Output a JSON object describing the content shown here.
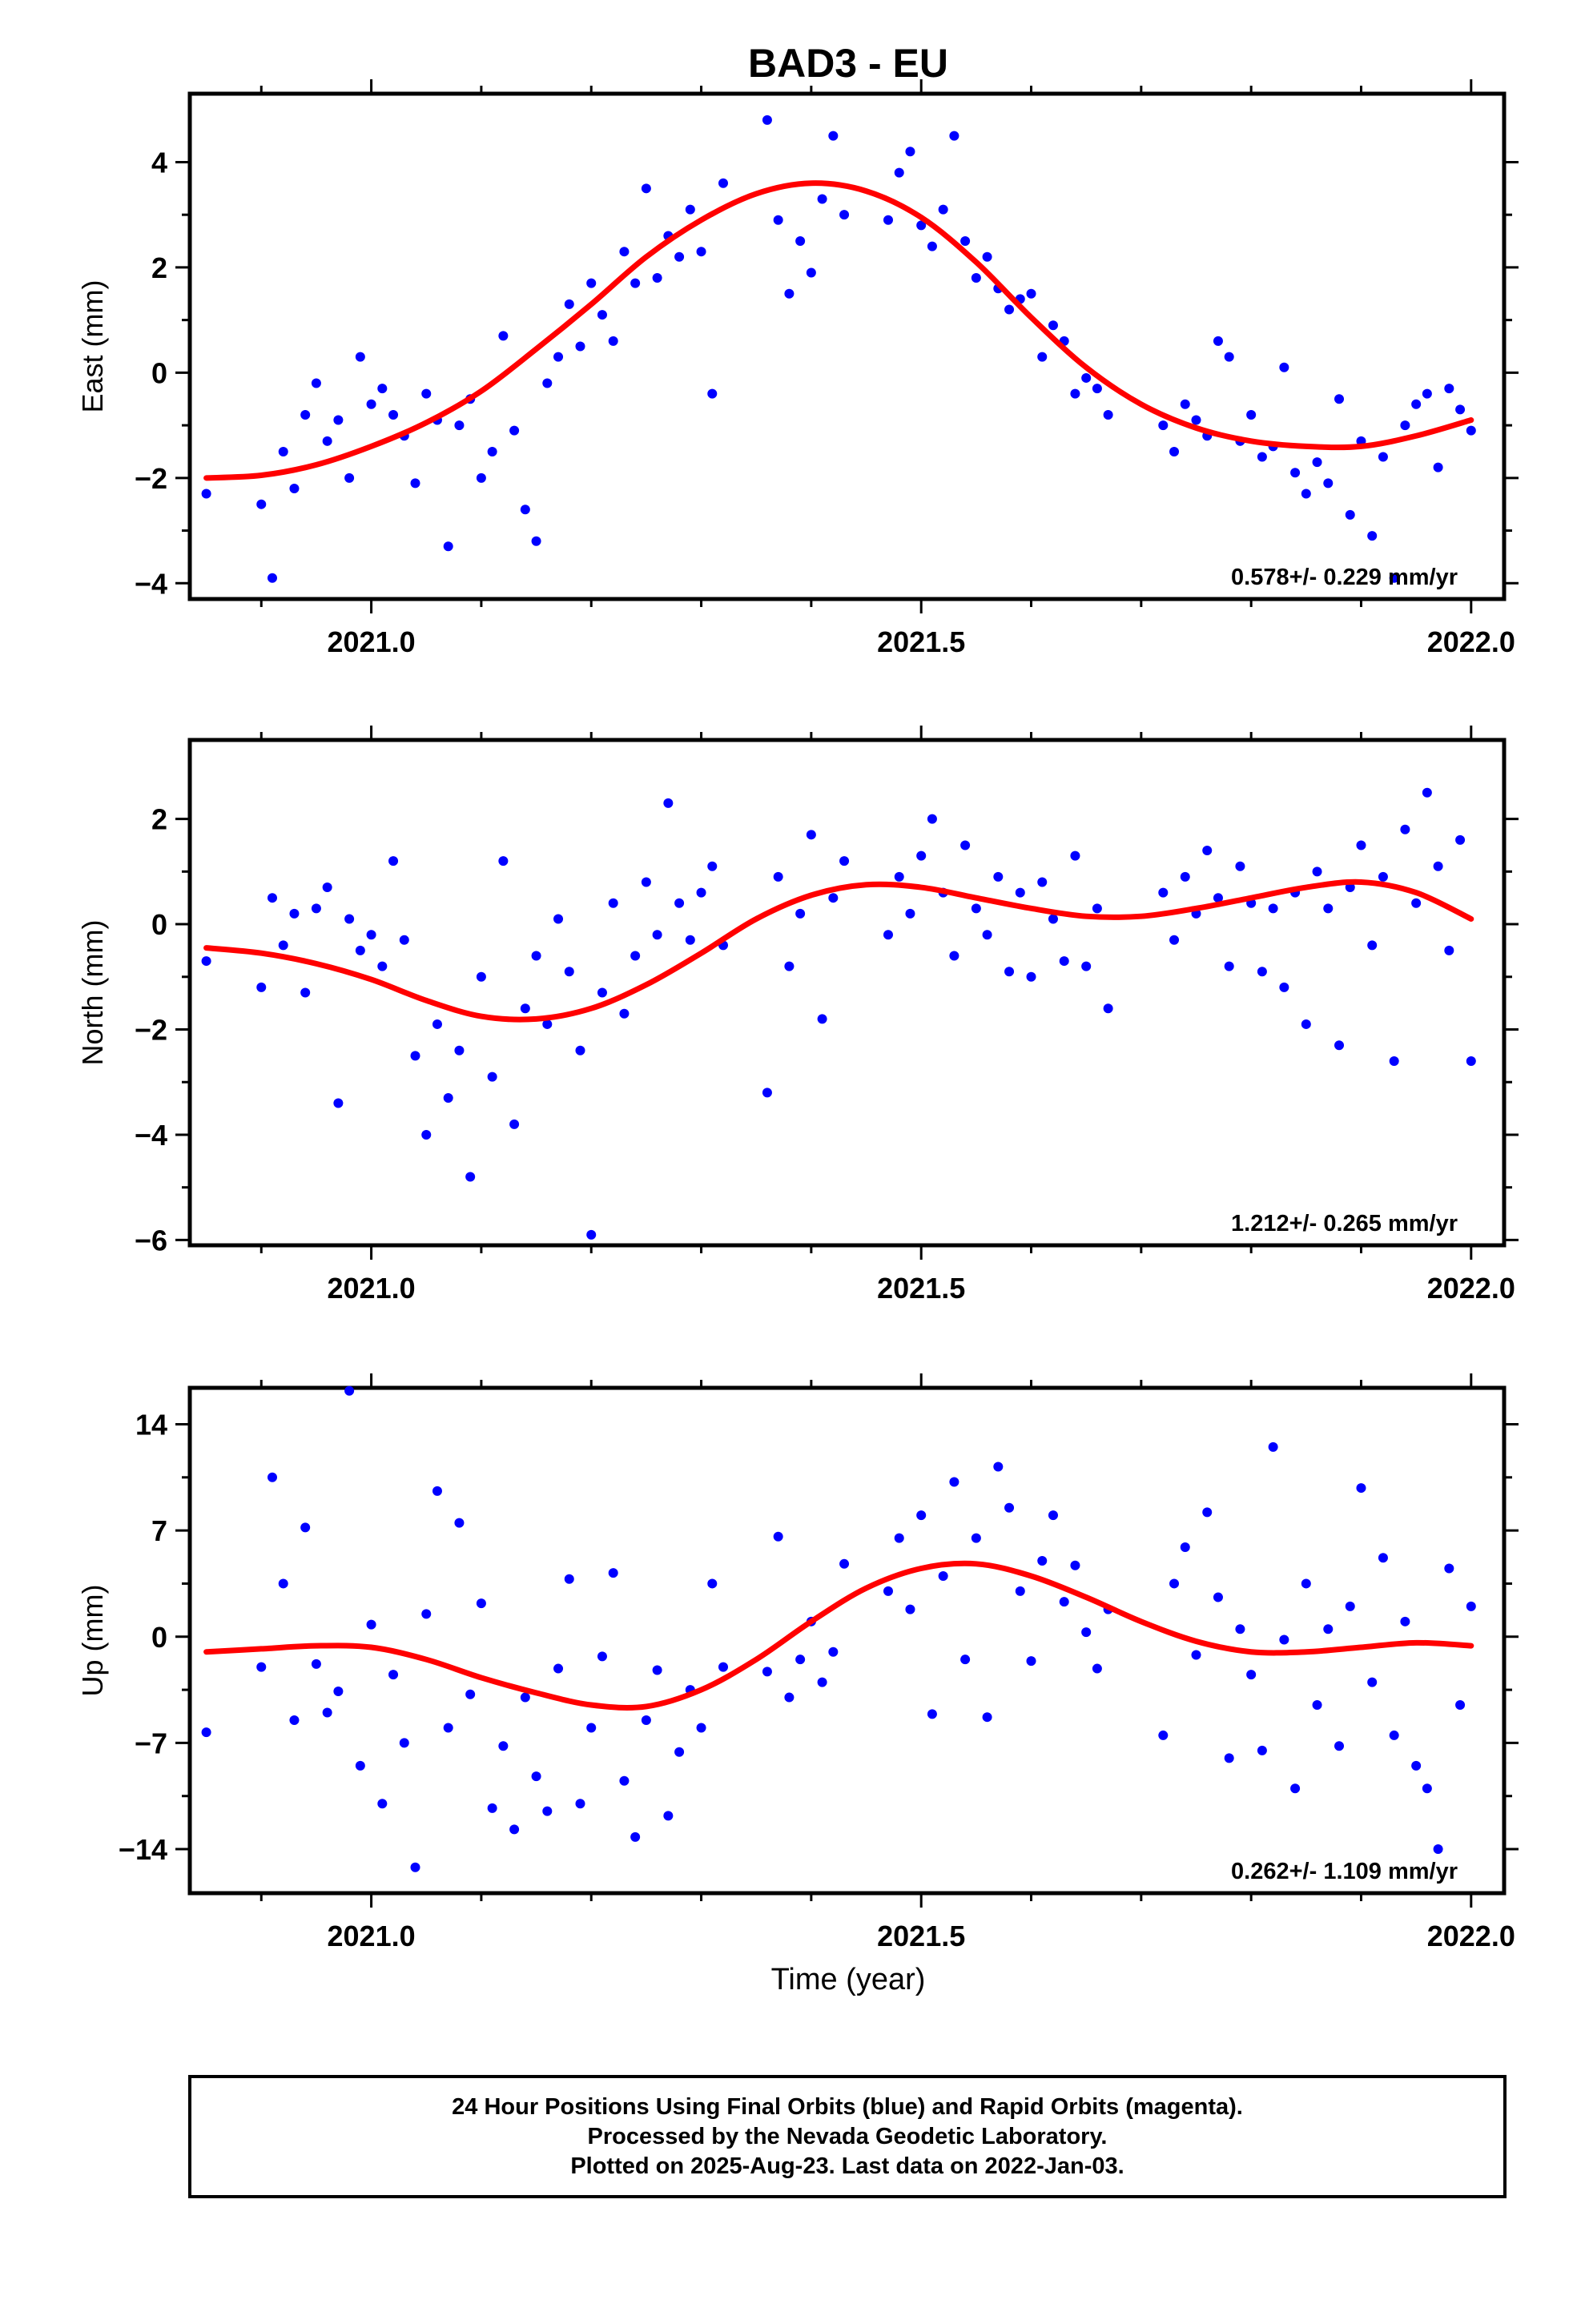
{
  "figure": {
    "title": "BAD3 - EU",
    "xlabel": "Time (year)",
    "footer": [
      "24 Hour Positions Using Final Orbits (blue) and Rapid Orbits (magenta).",
      "Processed by the Nevada Geodetic Laboratory.",
      "Plotted on 2025-Aug-23. Last data on 2022-Jan-03."
    ]
  },
  "colors": {
    "points": "#0000ff",
    "fit": "#ff0000",
    "axes": "#000000"
  },
  "chart_data": [
    {
      "type": "scatter",
      "ylabel": "East (mm)",
      "rate_label": "0.578+/- 0.229 mm/yr",
      "xlim": [
        2020.835,
        2022.03
      ],
      "ylim": [
        -4.3,
        5.3
      ],
      "xticks": [
        2021.0,
        2021.5,
        2022.0
      ],
      "xtick_labels": [
        "2021.0",
        "2021.5",
        "2022.0"
      ],
      "yticks": [
        -4,
        -2,
        0,
        2,
        4
      ],
      "ytick_labels": [
        "−4",
        "−2",
        "0",
        "2",
        "4"
      ],
      "series": [
        {
          "x": [
            2020.85,
            2020.9,
            2020.91,
            2020.92,
            2020.93,
            2020.94,
            2020.95,
            2020.96,
            2020.97,
            2020.98,
            2020.99,
            2021.0,
            2021.01,
            2021.02,
            2021.03,
            2021.04,
            2021.05,
            2021.06,
            2021.07,
            2021.08,
            2021.09,
            2021.1,
            2021.11,
            2021.12,
            2021.13,
            2021.14,
            2021.15,
            2021.16,
            2021.17,
            2021.18,
            2021.19,
            2021.2,
            2021.21,
            2021.22,
            2021.23,
            2021.24,
            2021.25,
            2021.26,
            2021.27,
            2021.28,
            2021.29,
            2021.3,
            2021.31,
            2021.32,
            2021.36,
            2021.37,
            2021.38,
            2021.39,
            2021.4,
            2021.41,
            2021.42,
            2021.43,
            2021.47,
            2021.48,
            2021.49,
            2021.5,
            2021.51,
            2021.52,
            2021.53,
            2021.54,
            2021.55,
            2021.56,
            2021.57,
            2021.58,
            2021.59,
            2021.6,
            2021.61,
            2021.62,
            2021.63,
            2021.64,
            2021.65,
            2021.66,
            2021.67,
            2021.72,
            2021.73,
            2021.74,
            2021.75,
            2021.76,
            2021.77,
            2021.78,
            2021.79,
            2021.8,
            2021.81,
            2021.82,
            2021.83,
            2021.84,
            2021.85,
            2021.86,
            2021.87,
            2021.88,
            2021.89,
            2021.9,
            2021.91,
            2021.92,
            2021.93,
            2021.94,
            2021.95,
            2021.96,
            2021.97,
            2021.98,
            2021.99,
            2022.0
          ],
          "y": [
            -2.3,
            -2.5,
            -3.9,
            -1.5,
            -2.2,
            -0.8,
            -0.2,
            -1.3,
            -0.9,
            -2.0,
            0.3,
            -0.6,
            -0.3,
            -0.8,
            -1.2,
            -2.1,
            -0.4,
            -0.9,
            -3.3,
            -1.0,
            -0.5,
            -2.0,
            -1.5,
            0.7,
            -1.1,
            -2.6,
            -3.2,
            -0.2,
            0.3,
            1.3,
            0.5,
            1.7,
            1.1,
            0.6,
            2.3,
            1.7,
            3.5,
            1.8,
            2.6,
            2.2,
            3.1,
            2.3,
            -0.4,
            3.6,
            4.8,
            2.9,
            1.5,
            2.5,
            1.9,
            3.3,
            4.5,
            3.0,
            2.9,
            3.8,
            4.2,
            2.8,
            2.4,
            3.1,
            4.5,
            2.5,
            1.8,
            2.2,
            1.6,
            1.2,
            1.4,
            1.5,
            0.3,
            0.9,
            0.6,
            -0.4,
            -0.1,
            -0.3,
            -0.8,
            -1.0,
            -1.5,
            -0.6,
            -0.9,
            -1.2,
            0.6,
            0.3,
            -1.3,
            -0.8,
            -1.6,
            -1.4,
            0.1,
            -1.9,
            -2.3,
            -1.7,
            -2.1,
            -0.5,
            -2.7,
            -1.3,
            -3.1,
            -1.6,
            -3.9,
            -1.0,
            -0.6,
            -0.4,
            -1.8,
            -0.3,
            -0.7,
            -1.1
          ]
        }
      ],
      "fit": {
        "x": [
          2020.85,
          2020.9,
          2020.95,
          2021.0,
          2021.05,
          2021.1,
          2021.15,
          2021.2,
          2021.25,
          2021.3,
          2021.35,
          2021.4,
          2021.45,
          2021.5,
          2021.55,
          2021.6,
          2021.65,
          2021.7,
          2021.75,
          2021.8,
          2021.85,
          2021.9,
          2021.95,
          2022.0
        ],
        "y": [
          -2.0,
          -1.95,
          -1.75,
          -1.4,
          -0.95,
          -0.35,
          0.45,
          1.3,
          2.2,
          2.9,
          3.4,
          3.6,
          3.45,
          2.95,
          2.1,
          1.05,
          0.1,
          -0.6,
          -1.05,
          -1.3,
          -1.4,
          -1.4,
          -1.2,
          -0.9
        ]
      }
    },
    {
      "type": "scatter",
      "ylabel": "North (mm)",
      "rate_label": "1.212+/- 0.265 mm/yr",
      "xlim": [
        2020.835,
        2022.03
      ],
      "ylim": [
        -6.1,
        3.5
      ],
      "xticks": [
        2021.0,
        2021.5,
        2022.0
      ],
      "xtick_labels": [
        "2021.0",
        "2021.5",
        "2022.0"
      ],
      "yticks": [
        -6,
        -4,
        -2,
        0,
        2
      ],
      "ytick_labels": [
        "−6",
        "−4",
        "−2",
        "0",
        "2"
      ],
      "series": [
        {
          "x": [
            2020.85,
            2020.9,
            2020.91,
            2020.92,
            2020.93,
            2020.94,
            2020.95,
            2020.96,
            2020.97,
            2020.98,
            2020.99,
            2021.0,
            2021.01,
            2021.02,
            2021.03,
            2021.04,
            2021.05,
            2021.06,
            2021.07,
            2021.08,
            2021.09,
            2021.1,
            2021.11,
            2021.12,
            2021.13,
            2021.14,
            2021.15,
            2021.16,
            2021.17,
            2021.18,
            2021.19,
            2021.2,
            2021.21,
            2021.22,
            2021.23,
            2021.24,
            2021.25,
            2021.26,
            2021.27,
            2021.28,
            2021.29,
            2021.3,
            2021.31,
            2021.32,
            2021.36,
            2021.37,
            2021.38,
            2021.39,
            2021.4,
            2021.41,
            2021.42,
            2021.43,
            2021.47,
            2021.48,
            2021.49,
            2021.5,
            2021.51,
            2021.52,
            2021.53,
            2021.54,
            2021.55,
            2021.56,
            2021.57,
            2021.58,
            2021.59,
            2021.6,
            2021.61,
            2021.62,
            2021.63,
            2021.64,
            2021.65,
            2021.66,
            2021.67,
            2021.72,
            2021.73,
            2021.74,
            2021.75,
            2021.76,
            2021.77,
            2021.78,
            2021.79,
            2021.8,
            2021.81,
            2021.82,
            2021.83,
            2021.84,
            2021.85,
            2021.86,
            2021.87,
            2021.88,
            2021.89,
            2021.9,
            2021.91,
            2021.92,
            2021.93,
            2021.94,
            2021.95,
            2021.96,
            2021.97,
            2021.98,
            2021.99,
            2022.0
          ],
          "y": [
            -0.7,
            -1.2,
            0.5,
            -0.4,
            0.2,
            -1.3,
            0.3,
            0.7,
            -3.4,
            0.1,
            -0.5,
            -0.2,
            -0.8,
            1.2,
            -0.3,
            -2.5,
            -4.0,
            -1.9,
            -3.3,
            -2.4,
            -4.8,
            -1.0,
            -2.9,
            1.2,
            -3.8,
            -1.6,
            -0.6,
            -1.9,
            0.1,
            -0.9,
            -2.4,
            -5.9,
            -1.3,
            0.4,
            -1.7,
            -0.6,
            0.8,
            -0.2,
            2.3,
            0.4,
            -0.3,
            0.6,
            1.1,
            -0.4,
            -3.2,
            0.9,
            -0.8,
            0.2,
            1.7,
            -1.8,
            0.5,
            1.2,
            -0.2,
            0.9,
            0.2,
            1.3,
            2.0,
            0.6,
            -0.6,
            1.5,
            0.3,
            -0.2,
            0.9,
            -0.9,
            0.6,
            -1.0,
            0.8,
            0.1,
            -0.7,
            1.3,
            -0.8,
            0.3,
            -1.6,
            0.6,
            -0.3,
            0.9,
            0.2,
            1.4,
            0.5,
            -0.8,
            1.1,
            0.4,
            -0.9,
            0.3,
            -1.2,
            0.6,
            -1.9,
            1.0,
            0.3,
            -2.3,
            0.7,
            1.5,
            -0.4,
            0.9,
            -2.6,
            1.8,
            0.4,
            2.5,
            1.1,
            -0.5,
            1.6,
            -2.6
          ]
        }
      ],
      "fit": {
        "x": [
          2020.85,
          2020.9,
          2020.95,
          2021.0,
          2021.05,
          2021.1,
          2021.15,
          2021.2,
          2021.25,
          2021.3,
          2021.35,
          2021.4,
          2021.45,
          2021.5,
          2021.55,
          2021.6,
          2021.65,
          2021.7,
          2021.75,
          2021.8,
          2021.85,
          2021.9,
          2021.95,
          2022.0
        ],
        "y": [
          -0.45,
          -0.55,
          -0.75,
          -1.05,
          -1.45,
          -1.75,
          -1.8,
          -1.6,
          -1.15,
          -0.55,
          0.1,
          0.55,
          0.75,
          0.7,
          0.5,
          0.3,
          0.15,
          0.15,
          0.3,
          0.5,
          0.7,
          0.8,
          0.6,
          0.1
        ]
      }
    },
    {
      "type": "scatter",
      "ylabel": "Up (mm)",
      "rate_label": "0.262+/- 1.109 mm/yr",
      "xlim": [
        2020.835,
        2022.03
      ],
      "ylim": [
        -16.9,
        16.4
      ],
      "xticks": [
        2021.0,
        2021.5,
        2022.0
      ],
      "xtick_labels": [
        "2021.0",
        "2021.5",
        "2022.0"
      ],
      "yticks": [
        -14,
        -7,
        0,
        7,
        14
      ],
      "ytick_labels": [
        "−14",
        "−7",
        "0",
        "7",
        "14"
      ],
      "series": [
        {
          "x": [
            2020.85,
            2020.9,
            2020.91,
            2020.92,
            2020.93,
            2020.94,
            2020.95,
            2020.96,
            2020.97,
            2020.98,
            2020.99,
            2021.0,
            2021.01,
            2021.02,
            2021.03,
            2021.04,
            2021.05,
            2021.06,
            2021.07,
            2021.08,
            2021.09,
            2021.1,
            2021.11,
            2021.12,
            2021.13,
            2021.14,
            2021.15,
            2021.16,
            2021.17,
            2021.18,
            2021.19,
            2021.2,
            2021.21,
            2021.22,
            2021.23,
            2021.24,
            2021.25,
            2021.26,
            2021.27,
            2021.28,
            2021.29,
            2021.3,
            2021.31,
            2021.32,
            2021.36,
            2021.37,
            2021.38,
            2021.39,
            2021.4,
            2021.41,
            2021.42,
            2021.43,
            2021.47,
            2021.48,
            2021.49,
            2021.5,
            2021.51,
            2021.52,
            2021.53,
            2021.54,
            2021.55,
            2021.56,
            2021.57,
            2021.58,
            2021.59,
            2021.6,
            2021.61,
            2021.62,
            2021.63,
            2021.64,
            2021.65,
            2021.66,
            2021.67,
            2021.72,
            2021.73,
            2021.74,
            2021.75,
            2021.76,
            2021.77,
            2021.78,
            2021.79,
            2021.8,
            2021.81,
            2021.82,
            2021.83,
            2021.84,
            2021.85,
            2021.86,
            2021.87,
            2021.88,
            2021.89,
            2021.9,
            2021.91,
            2021.92,
            2021.93,
            2021.94,
            2021.95,
            2021.96,
            2021.97,
            2021.98,
            2021.99,
            2022.0
          ],
          "y": [
            -6.3,
            -2.0,
            10.5,
            3.5,
            -5.5,
            7.2,
            -1.8,
            -5.0,
            -3.6,
            16.2,
            -8.5,
            0.8,
            -11.0,
            -2.5,
            -7.0,
            -15.2,
            1.5,
            9.6,
            -6.0,
            7.5,
            -3.8,
            2.2,
            -11.3,
            -7.2,
            -12.7,
            -4.0,
            -9.2,
            -11.5,
            -2.1,
            3.8,
            -11.0,
            -6.0,
            -1.3,
            4.2,
            -9.5,
            -13.2,
            -5.5,
            -2.2,
            -11.8,
            -7.6,
            -3.5,
            -6.0,
            3.5,
            -2.0,
            -2.3,
            6.6,
            -4.0,
            -1.5,
            1.0,
            -3.0,
            -1.0,
            4.8,
            3.0,
            6.5,
            1.8,
            8.0,
            -5.1,
            4.0,
            10.2,
            -1.5,
            6.5,
            -5.3,
            11.2,
            8.5,
            3.0,
            -1.6,
            5.0,
            8.0,
            2.3,
            4.7,
            0.3,
            -2.1,
            1.8,
            -6.5,
            3.5,
            5.9,
            -1.2,
            8.2,
            2.6,
            -8.0,
            0.5,
            -2.5,
            -7.5,
            12.5,
            -0.2,
            -10.0,
            3.5,
            -4.5,
            0.5,
            -7.2,
            2.0,
            9.8,
            -3.0,
            5.2,
            -6.5,
            1.0,
            -8.5,
            -10.0,
            -14.0,
            4.5,
            -4.5,
            2.0
          ]
        }
      ],
      "fit": {
        "x": [
          2020.85,
          2020.9,
          2020.95,
          2021.0,
          2021.05,
          2021.1,
          2021.15,
          2021.2,
          2021.25,
          2021.3,
          2021.35,
          2021.4,
          2021.45,
          2021.5,
          2021.55,
          2021.6,
          2021.65,
          2021.7,
          2021.75,
          2021.8,
          2021.85,
          2021.9,
          2021.95,
          2022.0
        ],
        "y": [
          -1.0,
          -0.8,
          -0.6,
          -0.7,
          -1.5,
          -2.7,
          -3.7,
          -4.5,
          -4.6,
          -3.5,
          -1.5,
          1.0,
          3.2,
          4.5,
          4.8,
          4.0,
          2.6,
          1.0,
          -0.3,
          -1.0,
          -1.0,
          -0.7,
          -0.4,
          -0.6
        ]
      }
    }
  ]
}
